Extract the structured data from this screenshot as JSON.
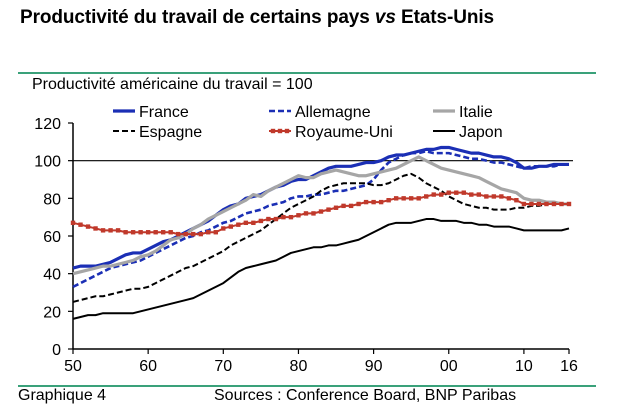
{
  "title": {
    "part1": "Productivité du travail de certains pays ",
    "part2": "vs",
    "part3": " Etats-Unis"
  },
  "subtitle": "Productivité américaine du travail = 100",
  "footer": {
    "left": "Graphique 4",
    "right": "Sources : Conference Board, BNP Paribas"
  },
  "colors": {
    "accent_rule": "#3aa17a",
    "france": "#1b2fb5",
    "allemagne": "#1b2fb5",
    "italie": "#a6a6a6",
    "espagne": "#000000",
    "royaume_uni": "#c0392b",
    "japon": "#000000"
  },
  "chart_data": {
    "type": "line",
    "x": [
      1950,
      1951,
      1952,
      1953,
      1954,
      1955,
      1956,
      1957,
      1958,
      1959,
      1960,
      1961,
      1962,
      1963,
      1964,
      1965,
      1966,
      1967,
      1968,
      1969,
      1970,
      1971,
      1972,
      1973,
      1974,
      1975,
      1976,
      1977,
      1978,
      1979,
      1980,
      1981,
      1982,
      1983,
      1984,
      1985,
      1986,
      1987,
      1988,
      1989,
      1990,
      1991,
      1992,
      1993,
      1994,
      1995,
      1996,
      1997,
      1998,
      1999,
      2000,
      2001,
      2002,
      2003,
      2004,
      2005,
      2006,
      2007,
      2008,
      2009,
      2010,
      2011,
      2012,
      2013,
      2014,
      2015,
      2016
    ],
    "xlim": [
      1950,
      2016
    ],
    "ylim": [
      0,
      120
    ],
    "x_ticks": [
      1950,
      1960,
      1970,
      1980,
      1990,
      2000,
      2010,
      2016
    ],
    "x_tick_labels": [
      "50",
      "60",
      "70",
      "80",
      "90",
      "00",
      "10",
      "16"
    ],
    "y_ticks": [
      0,
      20,
      40,
      60,
      80,
      100,
      120
    ],
    "y_tick_labels": [
      "0",
      "20",
      "40",
      "60",
      "80",
      "100",
      "120"
    ],
    "reference_line": 100,
    "legend_position": "top",
    "series": [
      {
        "name": "France",
        "key": "france",
        "style": "solid",
        "width": 3.2,
        "values": [
          43,
          44,
          44,
          44,
          45,
          46,
          48,
          50,
          51,
          51,
          53,
          55,
          57,
          58,
          60,
          62,
          64,
          66,
          68,
          71,
          74,
          76,
          77,
          80,
          81,
          82,
          84,
          86,
          87,
          89,
          90,
          90,
          92,
          94,
          96,
          97,
          97,
          97,
          98,
          99,
          99,
          100,
          102,
          103,
          103,
          104,
          105,
          106,
          106,
          107,
          107,
          106,
          105,
          104,
          104,
          103,
          102,
          102,
          101,
          99,
          96,
          96,
          97,
          97,
          98,
          98,
          98
        ]
      },
      {
        "name": "Allemagne",
        "key": "allemagne",
        "style": "dashed",
        "width": 2.6,
        "values": [
          33,
          35,
          37,
          39,
          41,
          43,
          44,
          45,
          46,
          47,
          49,
          51,
          53,
          55,
          57,
          59,
          60,
          62,
          63,
          65,
          67,
          68,
          70,
          72,
          73,
          74,
          76,
          77,
          78,
          80,
          81,
          81,
          82,
          82,
          83,
          84,
          84,
          85,
          86,
          87,
          90,
          95,
          99,
          101,
          103,
          104,
          104,
          105,
          104,
          104,
          104,
          103,
          102,
          101,
          101,
          100,
          99,
          99,
          98,
          97,
          96,
          97,
          97,
          97,
          97,
          98,
          98
        ]
      },
      {
        "name": "Italie",
        "key": "italie",
        "style": "solid",
        "width": 3.2,
        "values": [
          40,
          41,
          42,
          43,
          44,
          44,
          45,
          46,
          47,
          49,
          50,
          52,
          55,
          58,
          59,
          61,
          64,
          66,
          69,
          71,
          73,
          75,
          77,
          79,
          82,
          81,
          84,
          86,
          88,
          90,
          92,
          91,
          91,
          93,
          94,
          95,
          94,
          93,
          92,
          92,
          93,
          94,
          95,
          96,
          98,
          100,
          102,
          100,
          98,
          96,
          95,
          94,
          93,
          92,
          91,
          89,
          87,
          85,
          84,
          83,
          80,
          79,
          79,
          78,
          78,
          77,
          77
        ]
      },
      {
        "name": "Espagne",
        "key": "espagne",
        "style": "dashed",
        "width": 2,
        "values": [
          25,
          26,
          27,
          28,
          28,
          29,
          30,
          31,
          32,
          32,
          33,
          35,
          37,
          39,
          41,
          43,
          44,
          46,
          48,
          50,
          52,
          55,
          57,
          59,
          61,
          63,
          66,
          69,
          72,
          75,
          77,
          79,
          81,
          84,
          86,
          87,
          88,
          88,
          88,
          88,
          87,
          87,
          88,
          90,
          92,
          93,
          91,
          88,
          86,
          84,
          81,
          79,
          77,
          76,
          75,
          75,
          74,
          74,
          74,
          75,
          75,
          76,
          76,
          77,
          77,
          77,
          77
        ]
      },
      {
        "name": "Royaume-Uni",
        "key": "royaume_uni",
        "style": "markers",
        "width": 2,
        "values": [
          67,
          66,
          65,
          64,
          63,
          63,
          63,
          62,
          62,
          62,
          62,
          62,
          62,
          62,
          61,
          61,
          61,
          61,
          62,
          62,
          64,
          65,
          66,
          67,
          67,
          68,
          69,
          69,
          70,
          70,
          71,
          72,
          72,
          73,
          74,
          75,
          76,
          76,
          77,
          78,
          78,
          78,
          79,
          80,
          80,
          80,
          80,
          81,
          82,
          82,
          83,
          83,
          83,
          82,
          82,
          81,
          81,
          81,
          80,
          79,
          77,
          77,
          77,
          77,
          77,
          77,
          77
        ]
      },
      {
        "name": "Japon",
        "key": "japon",
        "style": "solid",
        "width": 2,
        "values": [
          16,
          17,
          18,
          18,
          19,
          19,
          19,
          19,
          19,
          20,
          21,
          22,
          23,
          24,
          25,
          26,
          27,
          29,
          31,
          33,
          35,
          38,
          41,
          43,
          44,
          45,
          46,
          47,
          49,
          51,
          52,
          53,
          54,
          54,
          55,
          55,
          56,
          57,
          58,
          60,
          62,
          64,
          66,
          67,
          67,
          67,
          68,
          69,
          69,
          68,
          68,
          68,
          67,
          67,
          66,
          66,
          65,
          65,
          65,
          64,
          63,
          63,
          63,
          63,
          63,
          63,
          64
        ]
      }
    ]
  }
}
